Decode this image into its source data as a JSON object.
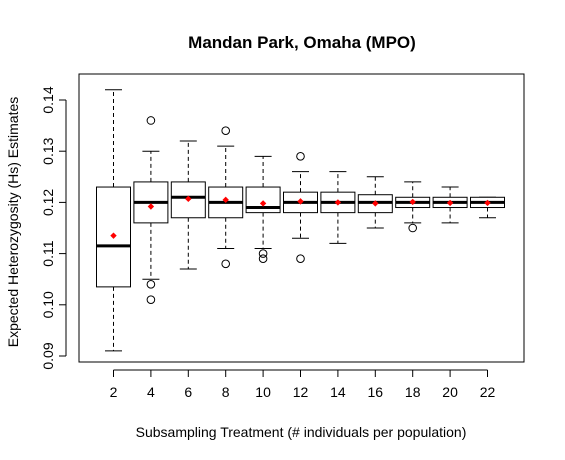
{
  "chart_data": {
    "type": "boxplot",
    "title": "Mandan Park, Omaha (MPO)",
    "xlabel": "Subsampling Treatment (# individuals per population)",
    "ylabel": "Expected Heterozygosity (Hs) Estimates",
    "categories": [
      "2",
      "4",
      "6",
      "8",
      "10",
      "12",
      "14",
      "16",
      "18",
      "20",
      "22"
    ],
    "y_ticks": [
      "0.09",
      "0.10",
      "0.11",
      "0.12",
      "0.13",
      "0.14"
    ],
    "ylim": [
      0.09,
      0.1435
    ],
    "mean_marker_color": "#ff0000",
    "grid": false,
    "boxes": [
      {
        "group": "2",
        "whisker_low": 0.091,
        "q1": 0.1035,
        "median": 0.1115,
        "q3": 0.123,
        "whisker_high": 0.142,
        "mean": 0.1135,
        "outliers": []
      },
      {
        "group": "4",
        "whisker_low": 0.105,
        "q1": 0.116,
        "median": 0.12,
        "q3": 0.124,
        "whisker_high": 0.13,
        "mean": 0.1192,
        "outliers": [
          0.101,
          0.104,
          0.136
        ]
      },
      {
        "group": "6",
        "whisker_low": 0.107,
        "q1": 0.117,
        "median": 0.121,
        "q3": 0.124,
        "whisker_high": 0.132,
        "mean": 0.1207,
        "outliers": []
      },
      {
        "group": "8",
        "whisker_low": 0.111,
        "q1": 0.117,
        "median": 0.12,
        "q3": 0.123,
        "whisker_high": 0.131,
        "mean": 0.1205,
        "outliers": [
          0.108,
          0.134
        ]
      },
      {
        "group": "10",
        "whisker_low": 0.111,
        "q1": 0.118,
        "median": 0.119,
        "q3": 0.123,
        "whisker_high": 0.129,
        "mean": 0.1198,
        "outliers": [
          0.109,
          0.11
        ]
      },
      {
        "group": "12",
        "whisker_low": 0.113,
        "q1": 0.118,
        "median": 0.12,
        "q3": 0.122,
        "whisker_high": 0.126,
        "mean": 0.1202,
        "outliers": [
          0.109,
          0.129
        ]
      },
      {
        "group": "14",
        "whisker_low": 0.112,
        "q1": 0.118,
        "median": 0.12,
        "q3": 0.122,
        "whisker_high": 0.126,
        "mean": 0.12,
        "outliers": []
      },
      {
        "group": "16",
        "whisker_low": 0.115,
        "q1": 0.118,
        "median": 0.12,
        "q3": 0.1215,
        "whisker_high": 0.125,
        "mean": 0.1198,
        "outliers": []
      },
      {
        "group": "18",
        "whisker_low": 0.116,
        "q1": 0.119,
        "median": 0.12,
        "q3": 0.121,
        "whisker_high": 0.124,
        "mean": 0.1201,
        "outliers": [
          0.115
        ]
      },
      {
        "group": "20",
        "whisker_low": 0.116,
        "q1": 0.119,
        "median": 0.12,
        "q3": 0.121,
        "whisker_high": 0.123,
        "mean": 0.1199,
        "outliers": []
      },
      {
        "group": "22",
        "whisker_low": 0.117,
        "q1": 0.119,
        "median": 0.12,
        "q3": 0.121,
        "whisker_high": 0.121,
        "mean": 0.1199,
        "outliers": []
      }
    ]
  }
}
